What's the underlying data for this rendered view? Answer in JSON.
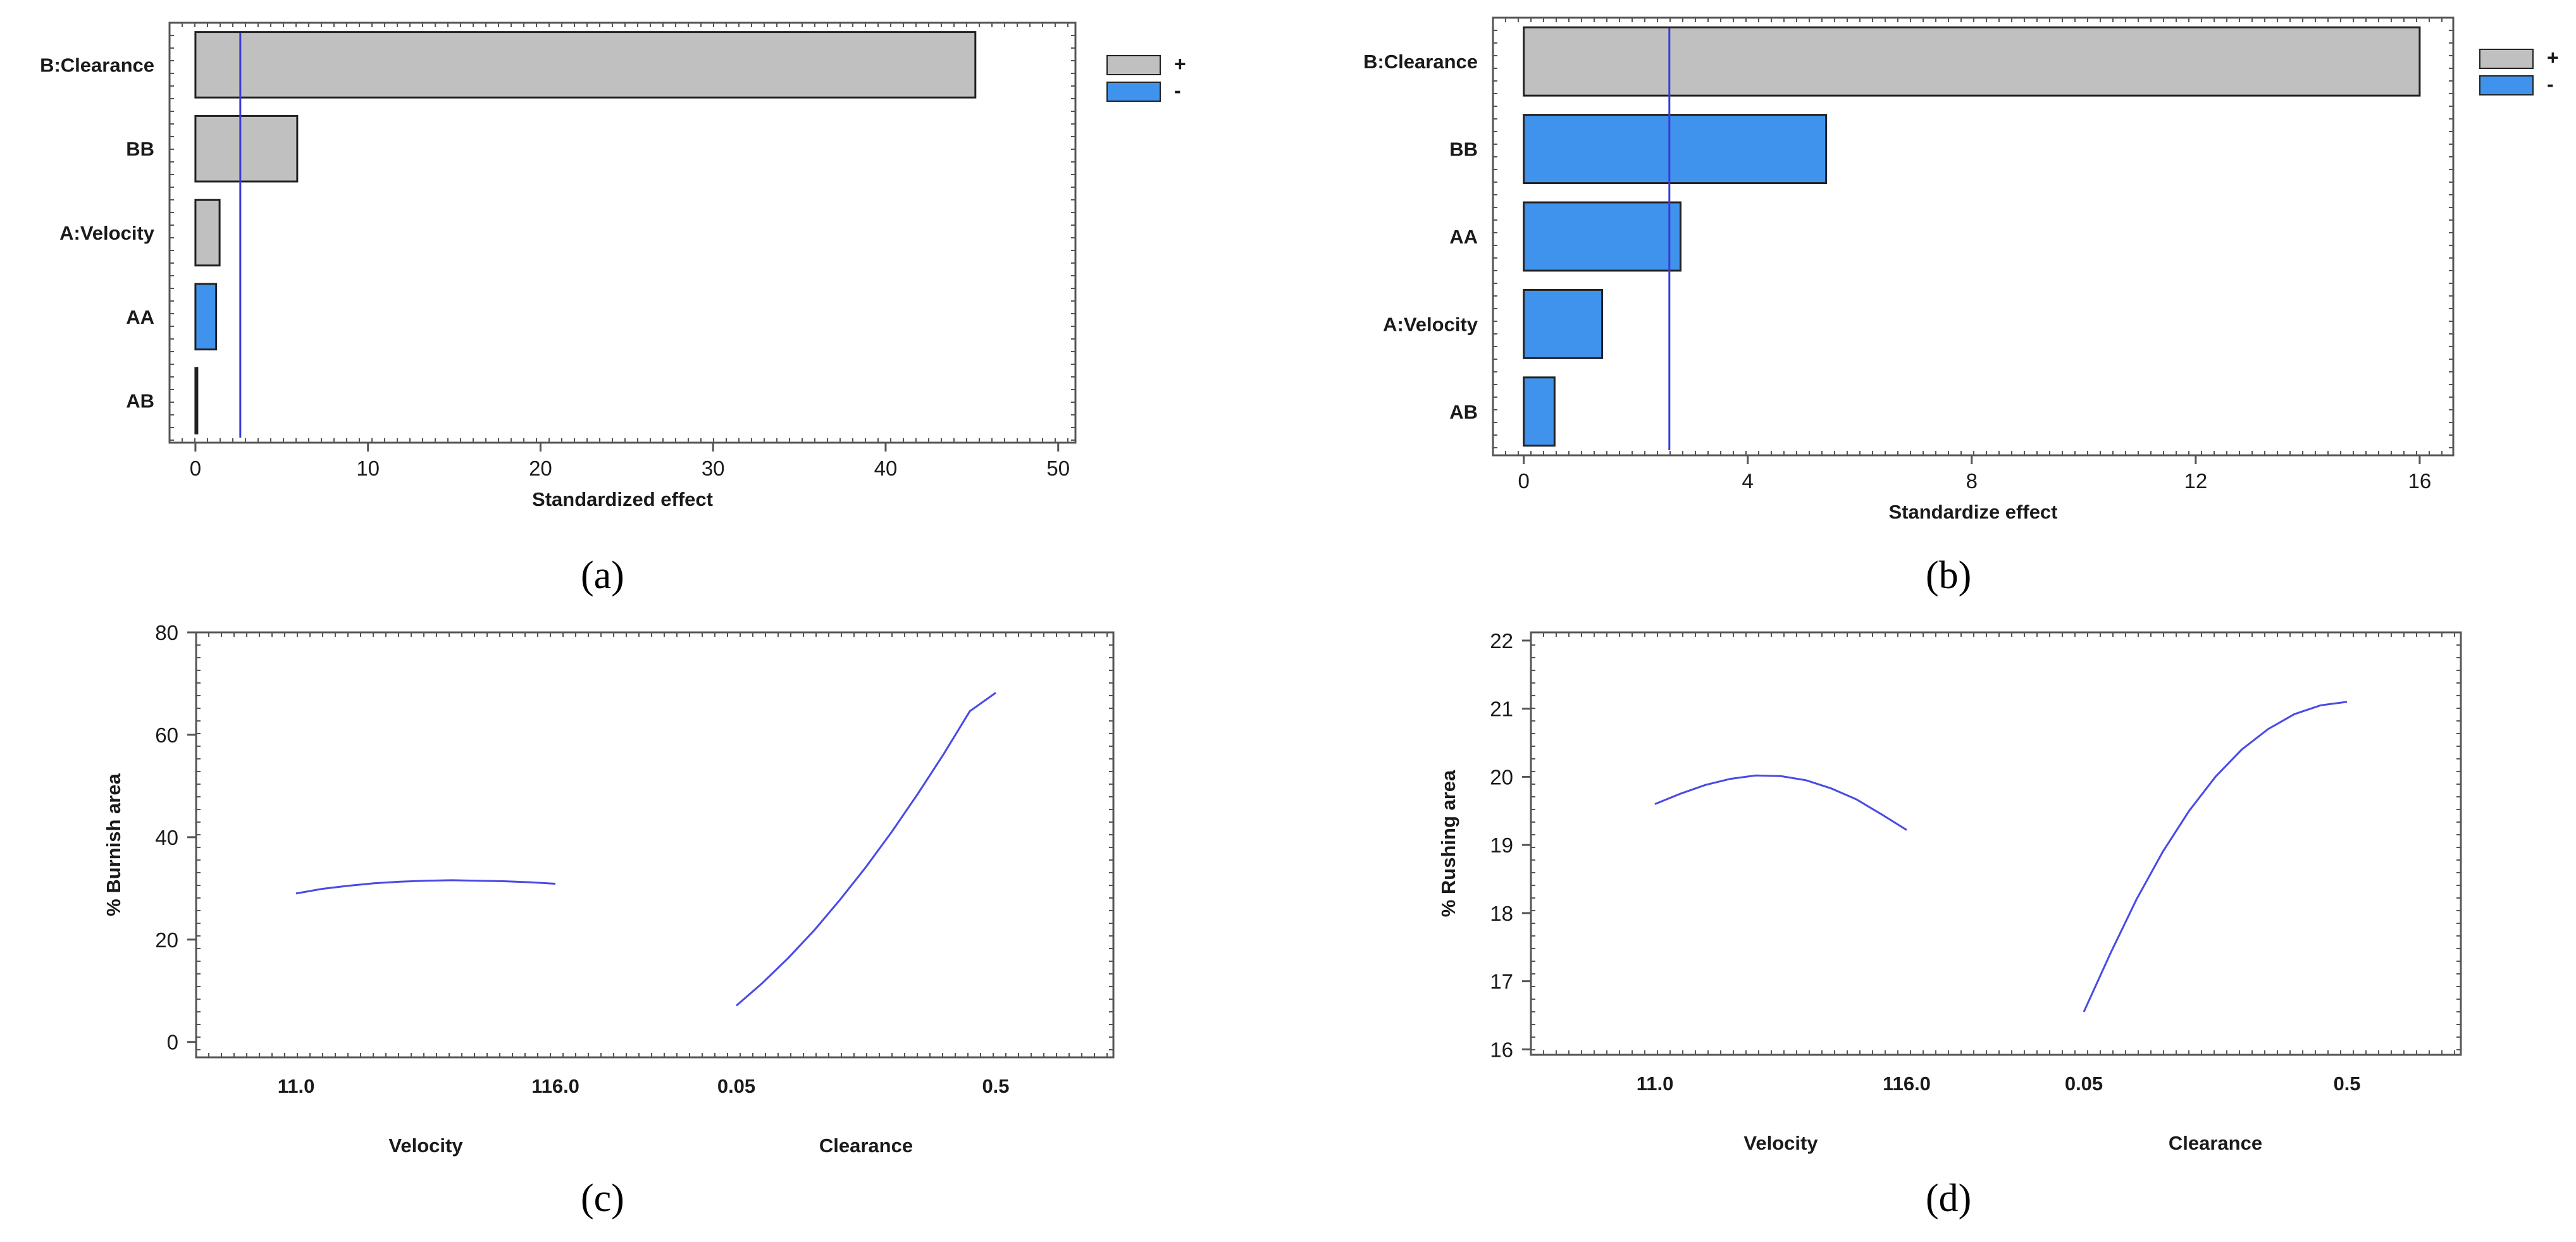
{
  "figure": {
    "panel_labels": [
      "(a)",
      "(b)",
      "(c)",
      "(d)"
    ],
    "colors": {
      "positive": "#c0c0c0",
      "negative": "#3f93ec",
      "reference_line": "#3b3bd6",
      "curve": "#4a4ae6",
      "frame": "#555555",
      "text": "#1a1a1a"
    }
  },
  "chart_data": [
    {
      "id": "a",
      "type": "bar",
      "orientation": "horizontal",
      "title": "",
      "xlabel": "Standardized effect",
      "ylabel": "",
      "categories": [
        "B:Clearance",
        "BB",
        "A:Velocity",
        "AA",
        "AB"
      ],
      "values": [
        45.2,
        5.9,
        1.4,
        1.2,
        0.1
      ],
      "signs": [
        "+",
        "+",
        "+",
        "-",
        "+"
      ],
      "xlim": [
        -1.5,
        51
      ],
      "xticks": [
        0,
        10,
        20,
        30,
        40,
        50
      ],
      "reference_line": 2.6,
      "legend": {
        "position": "top-right",
        "entries": [
          {
            "label": "+",
            "sign": "+"
          },
          {
            "label": "-",
            "sign": "-"
          }
        ]
      }
    },
    {
      "id": "b",
      "type": "bar",
      "orientation": "horizontal",
      "title": "",
      "xlabel": "Standardize effect",
      "ylabel": "",
      "categories": [
        "B:Clearance",
        "BB",
        "AA",
        "A:Velocity",
        "AB"
      ],
      "values": [
        16.0,
        5.4,
        2.8,
        1.4,
        0.55
      ],
      "signs": [
        "+",
        "-",
        "-",
        "-",
        "-"
      ],
      "xlim": [
        -0.55,
        16.6
      ],
      "xticks": [
        0,
        4,
        8,
        12,
        16
      ],
      "reference_line": 2.6,
      "legend": {
        "position": "top-right",
        "entries": [
          {
            "label": "+",
            "sign": "+"
          },
          {
            "label": "-",
            "sign": "-"
          }
        ]
      }
    },
    {
      "id": "c",
      "type": "line",
      "title": "",
      "ylabel": "% Burnish area",
      "ylim": [
        -3,
        80
      ],
      "yticks": [
        0,
        20,
        40,
        60,
        80
      ],
      "groups": [
        {
          "name": "Velocity",
          "tick_labels": [
            "11.0",
            "116.0"
          ],
          "points": [
            [
              0,
              29
            ],
            [
              0.1,
              29.9
            ],
            [
              0.2,
              30.5
            ],
            [
              0.3,
              31.0
            ],
            [
              0.4,
              31.3
            ],
            [
              0.5,
              31.5
            ],
            [
              0.6,
              31.6
            ],
            [
              0.7,
              31.5
            ],
            [
              0.8,
              31.4
            ],
            [
              0.9,
              31.2
            ],
            [
              1.0,
              30.9
            ]
          ]
        },
        {
          "name": "Clearance",
          "tick_labels": [
            "0.05",
            "0.5"
          ],
          "points": [
            [
              0,
              7.1
            ],
            [
              0.1,
              11.5
            ],
            [
              0.2,
              16.4
            ],
            [
              0.3,
              21.8
            ],
            [
              0.4,
              27.8
            ],
            [
              0.5,
              34.2
            ],
            [
              0.6,
              41.1
            ],
            [
              0.7,
              48.5
            ],
            [
              0.8,
              56.3
            ],
            [
              0.9,
              64.6
            ],
            [
              1.0,
              68.2
            ]
          ]
        }
      ]
    },
    {
      "id": "d",
      "type": "line",
      "title": "",
      "ylabel": "% Rushing area",
      "ylim": [
        15.92,
        22.12
      ],
      "yticks": [
        16,
        17,
        18,
        19,
        20,
        21,
        22
      ],
      "groups": [
        {
          "name": "Velocity",
          "tick_labels": [
            "11.0",
            "116.0"
          ],
          "points": [
            [
              0,
              19.6
            ],
            [
              0.1,
              19.75
            ],
            [
              0.2,
              19.88
            ],
            [
              0.3,
              19.97
            ],
            [
              0.4,
              20.02
            ],
            [
              0.5,
              20.01
            ],
            [
              0.6,
              19.95
            ],
            [
              0.7,
              19.83
            ],
            [
              0.8,
              19.67
            ],
            [
              0.9,
              19.45
            ],
            [
              1.0,
              19.22
            ]
          ]
        },
        {
          "name": "Clearance",
          "tick_labels": [
            "0.05",
            "0.5"
          ],
          "points": [
            [
              0,
              16.55
            ],
            [
              0.1,
              17.4
            ],
            [
              0.2,
              18.2
            ],
            [
              0.3,
              18.9
            ],
            [
              0.4,
              19.5
            ],
            [
              0.5,
              20.0
            ],
            [
              0.6,
              20.4
            ],
            [
              0.7,
              20.7
            ],
            [
              0.8,
              20.92
            ],
            [
              0.9,
              21.05
            ],
            [
              1.0,
              21.1
            ]
          ]
        }
      ]
    }
  ]
}
